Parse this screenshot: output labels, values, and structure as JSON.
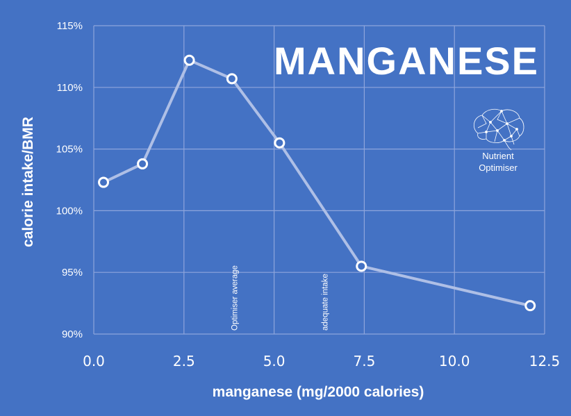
{
  "chart_data": {
    "type": "line",
    "title": "MANGANESE",
    "xlabel": "manganese (mg/2000 calories)",
    "ylabel": "calorie intake/BMR",
    "xlim": [
      0.0,
      12.5
    ],
    "ylim": [
      90,
      115
    ],
    "x_ticks": [
      0.0,
      2.5,
      5.0,
      7.5,
      10.0,
      12.5
    ],
    "x_tick_labels": [
      "0.0",
      "2.5",
      "5.0",
      "7.5",
      "10.0",
      "12.5"
    ],
    "y_ticks": [
      90,
      95,
      100,
      105,
      110,
      115
    ],
    "y_tick_labels": [
      "90%",
      "95%",
      "100%",
      "105%",
      "110%",
      "115%"
    ],
    "grid": true,
    "series": [
      {
        "x": [
          0.27,
          1.35,
          2.65,
          3.83,
          5.15,
          7.42,
          12.1
        ],
        "y": [
          102.3,
          103.8,
          112.2,
          110.7,
          105.5,
          95.5,
          92.3
        ]
      }
    ],
    "annotations": [
      {
        "text": "Optimiser average",
        "x": 3.9
      },
      {
        "text": "adequate intake",
        "x": 6.4
      }
    ]
  },
  "logo": {
    "line1": "Nutrient",
    "line2": "Optimiser",
    "icon": "brain-icon"
  },
  "colors": {
    "background": "#4472c4",
    "line": "#aebfe6",
    "grid": "#8ea5dc",
    "marker_fill": "#4472c4",
    "marker_stroke": "#ffffff"
  }
}
